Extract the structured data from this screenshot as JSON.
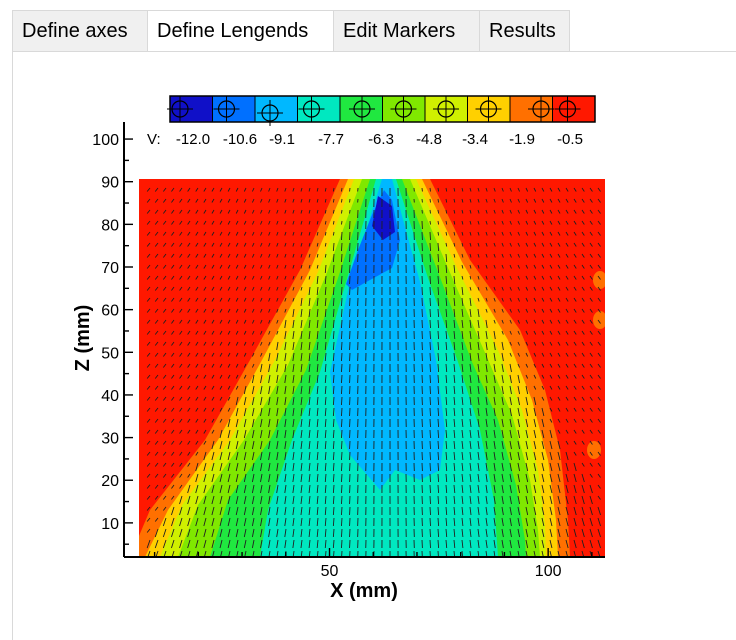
{
  "tabs": [
    {
      "label": "Define axes"
    },
    {
      "label": "Define Lengends"
    },
    {
      "label": "Edit Markers"
    },
    {
      "label": "Results"
    }
  ],
  "active_tab": 1,
  "legend": {
    "variable": "V:",
    "levels": [
      "-12.0",
      "-10.6",
      "-9.1",
      "-7.7",
      "-6.3",
      "-4.8",
      "-3.4",
      "-1.9",
      "-0.5"
    ],
    "colors": [
      "#1010c8",
      "#0070ff",
      "#00b8ff",
      "#00e8c0",
      "#20e840",
      "#80e800",
      "#d0f000",
      "#ffd000",
      "#ff7000",
      "#ff1800"
    ]
  },
  "chart_data": {
    "type": "contour",
    "xlabel": "X (mm)",
    "ylabel": "Z (mm)",
    "xlim": [
      3,
      113
    ],
    "ylim": [
      2,
      104
    ],
    "x_ticks": [
      "50",
      "100"
    ],
    "y_ticks": [
      "10",
      "20",
      "30",
      "40",
      "50",
      "60",
      "70",
      "80",
      "90",
      "100"
    ],
    "grid": false
  }
}
